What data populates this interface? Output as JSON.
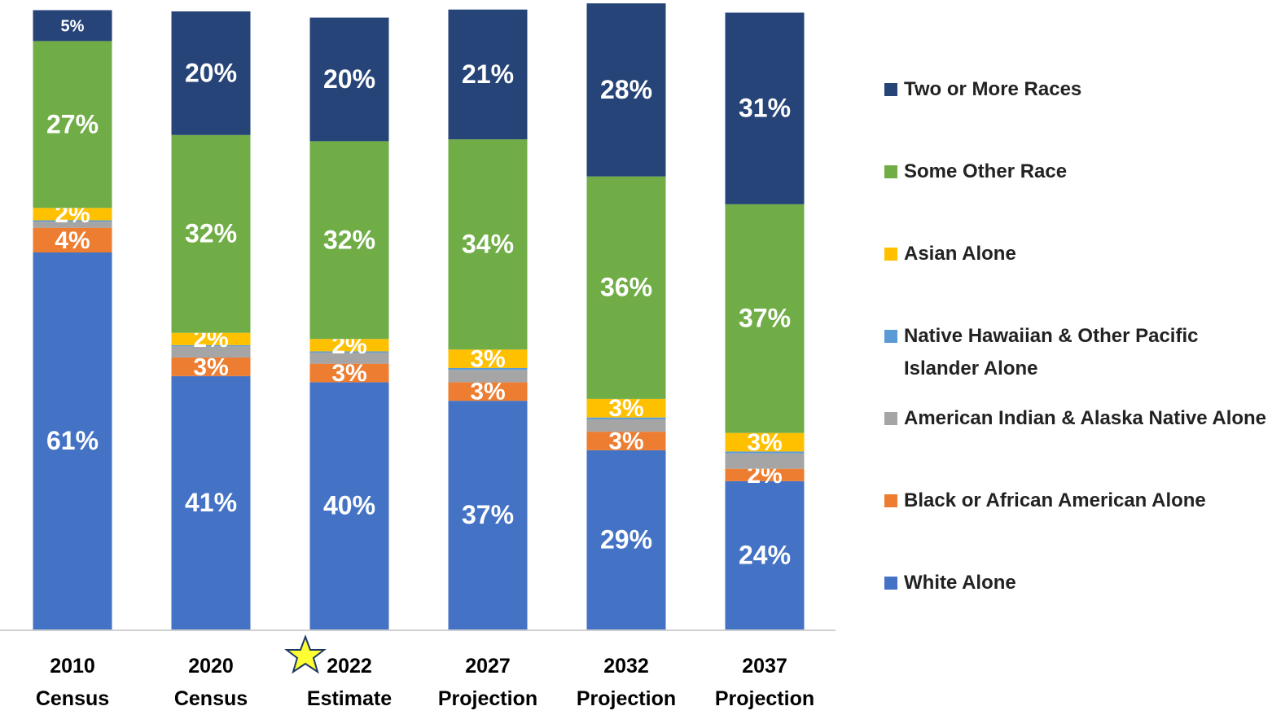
{
  "chart_data": {
    "type": "stacked_bar",
    "categories": [
      "2010 Census",
      "2020 Census",
      "2022 Estimate",
      "2027 Projection",
      "2032 Projection",
      "2037 Projection"
    ],
    "ylim": [
      0,
      100
    ],
    "series": [
      {
        "name": "White Alone",
        "color": "#4472c4",
        "values": [
          61,
          41,
          40,
          37,
          29,
          24
        ],
        "value_labels": [
          "61%",
          "41%",
          "40%",
          "37%",
          "29%",
          "24%"
        ]
      },
      {
        "name": "Black or African American Alone",
        "color": "#ed7d31",
        "values": [
          4,
          3,
          3,
          3,
          3,
          2
        ],
        "value_labels": [
          "4%",
          "3%",
          "3%",
          "3%",
          "3%",
          "2%"
        ]
      },
      {
        "name": "American Indian & Alaska Native Alone",
        "color": "#a5a5a5",
        "values": [
          1,
          1.8,
          1.8,
          2,
          2,
          2.5
        ],
        "value_labels": [
          null,
          null,
          null,
          null,
          null,
          null
        ]
      },
      {
        "name": "Native Hawaiian & Other Pacific Islander Alone",
        "color": "#5b9bd5",
        "values": [
          0.2,
          0.2,
          0.2,
          0.3,
          0.3,
          0.3
        ],
        "value_labels": [
          null,
          null,
          null,
          null,
          null,
          null
        ]
      },
      {
        "name": "Asian Alone",
        "color": "#ffc000",
        "values": [
          2,
          2,
          2,
          3,
          3,
          3
        ],
        "value_labels": [
          "2%",
          "2%",
          "2%",
          "3%",
          "3%",
          "3%"
        ]
      },
      {
        "name": "Some Other Race",
        "color": "#70ad47",
        "values": [
          27,
          32,
          32,
          34,
          36,
          37
        ],
        "value_labels": [
          "27%",
          "32%",
          "32%",
          "34%",
          "36%",
          "37%"
        ]
      },
      {
        "name": "Two or More Races",
        "color": "#264478",
        "values": [
          5,
          20,
          20,
          21,
          28,
          31
        ],
        "value_labels": [
          "5%",
          "20%",
          "20%",
          "21%",
          "28%",
          "31%"
        ]
      }
    ]
  }
}
